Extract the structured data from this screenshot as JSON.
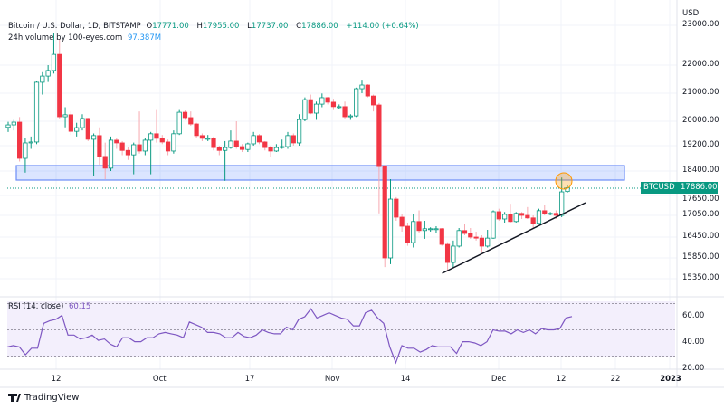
{
  "header": {
    "symbol_line": "Bitcoin / U.S. Dollar, 1D, BITSTAMP",
    "o_label": "O",
    "o_value": "17771.00",
    "h_label": "H",
    "h_value": "17955.00",
    "l_label": "L",
    "l_value": "17737.00",
    "c_label": "C",
    "c_value": "17886.00",
    "change": "+114.00 (+0.64%)",
    "volume_label": "24h volume by 100-eyes.com",
    "volume_value": "97.387M"
  },
  "price_scale": {
    "currency": "USD",
    "ticks": [
      "23000.00",
      "22000.00",
      "21000.00",
      "20000.00",
      "19200.00",
      "18400.00",
      "17650.00",
      "17050.00",
      "16450.00",
      "15850.00",
      "15350.00"
    ],
    "last_symbol": "BTCUSD",
    "last_price": "17886.00"
  },
  "rsi": {
    "label": "RSI (14, close)",
    "value": "60.15",
    "ticks": [
      "60.00",
      "40.00",
      "20.00"
    ],
    "bands": [
      70,
      50,
      30
    ],
    "values": [
      37,
      38,
      37,
      31,
      36,
      36,
      55,
      57,
      58,
      61,
      46,
      46,
      43,
      44,
      46,
      42,
      43,
      39,
      37,
      44,
      44,
      41,
      41,
      44,
      44,
      47,
      48,
      47,
      46,
      44,
      56,
      54,
      52,
      48,
      48,
      47,
      44,
      44,
      48,
      45,
      44,
      46,
      50,
      48,
      47,
      47,
      52,
      50,
      58,
      60,
      66,
      59,
      61,
      63,
      61,
      59,
      58,
      53,
      53,
      63,
      65,
      59,
      55,
      37,
      25,
      38,
      36,
      36,
      33,
      35,
      38,
      37,
      37,
      37,
      32,
      41,
      41,
      40,
      38,
      41,
      50,
      49,
      49,
      47,
      50,
      48,
      50,
      47,
      51,
      50,
      50,
      51,
      59,
      60.15
    ]
  },
  "time_axis": [
    "12",
    "Oct",
    "17",
    "Nov",
    "14",
    "Dec",
    "12",
    "22",
    "2023"
  ],
  "branding": "TradingView",
  "colors": {
    "up": "#089981",
    "up_fill": "#ffffff",
    "down": "#f23645",
    "zone": "#2962ff",
    "circle": "#ff9800",
    "rsi": "#7e57c2",
    "trendline": "#131722"
  },
  "chart_data": {
    "type": "candlestick",
    "title": "Bitcoin / U.S. Dollar, 1D, BITSTAMP",
    "ylabel": "USD",
    "ylim": [
      15200,
      23300
    ],
    "grid": true,
    "ohlc": [
      [
        19800,
        19980,
        19650,
        19880
      ],
      [
        19880,
        20050,
        19700,
        19970
      ],
      [
        19970,
        20150,
        18700,
        18800
      ],
      [
        18800,
        19450,
        18350,
        19290
      ],
      [
        19290,
        19500,
        19100,
        19320
      ],
      [
        19320,
        21450,
        19250,
        21390
      ],
      [
        21390,
        21750,
        20950,
        21610
      ],
      [
        21610,
        22000,
        21400,
        21810
      ],
      [
        21810,
        22800,
        21700,
        22270
      ],
      [
        22270,
        22650,
        20100,
        20160
      ],
      [
        20160,
        20500,
        19800,
        20230
      ],
      [
        20230,
        20350,
        19550,
        19670
      ],
      [
        19670,
        19950,
        19500,
        19790
      ],
      [
        19790,
        20250,
        19700,
        20100
      ],
      [
        20100,
        20120,
        19350,
        19410
      ],
      [
        19410,
        19600,
        18250,
        19530
      ],
      [
        19530,
        19800,
        18600,
        18860
      ],
      [
        18860,
        19300,
        18150,
        18490
      ],
      [
        18490,
        19500,
        18400,
        19380
      ],
      [
        19380,
        19450,
        19100,
        19290
      ],
      [
        19290,
        19350,
        18900,
        19050
      ],
      [
        19050,
        19150,
        18750,
        18910
      ],
      [
        18910,
        19300,
        18300,
        19230
      ],
      [
        19230,
        20350,
        18950,
        19030
      ],
      [
        19030,
        19450,
        18900,
        19380
      ],
      [
        19380,
        19650,
        18300,
        19590
      ],
      [
        19590,
        20400,
        19300,
        19440
      ],
      [
        19440,
        19550,
        19250,
        19320
      ],
      [
        19320,
        19400,
        18900,
        19030
      ],
      [
        19030,
        19700,
        18950,
        19590
      ],
      [
        19590,
        20400,
        19550,
        20320
      ],
      [
        20320,
        20380,
        20050,
        20130
      ],
      [
        20130,
        20350,
        19850,
        19910
      ],
      [
        19910,
        19950,
        19450,
        19530
      ],
      [
        19530,
        19600,
        19350,
        19440
      ],
      [
        19440,
        19550,
        19350,
        19440
      ],
      [
        19440,
        19500,
        19050,
        19140
      ],
      [
        19140,
        19200,
        18900,
        19050
      ],
      [
        19050,
        19350,
        18100,
        19140
      ],
      [
        19140,
        19700,
        19100,
        19350
      ],
      [
        19350,
        20000,
        19100,
        19170
      ],
      [
        19170,
        19250,
        19000,
        19080
      ],
      [
        19080,
        19300,
        19000,
        19260
      ],
      [
        19260,
        19650,
        19200,
        19530
      ],
      [
        19530,
        19580,
        19250,
        19320
      ],
      [
        19320,
        19350,
        19050,
        19140
      ],
      [
        19140,
        19200,
        18850,
        19030
      ],
      [
        19030,
        19250,
        19000,
        19140
      ],
      [
        19140,
        19400,
        19100,
        19170
      ],
      [
        19170,
        19650,
        19100,
        19530
      ],
      [
        19530,
        19600,
        19200,
        19290
      ],
      [
        19290,
        20250,
        19200,
        20060
      ],
      [
        20060,
        20850,
        20000,
        20770
      ],
      [
        20770,
        20950,
        20250,
        20290
      ],
      [
        20290,
        20700,
        20050,
        20610
      ],
      [
        20610,
        20990,
        20500,
        20840
      ],
      [
        20840,
        20870,
        20600,
        20680
      ],
      [
        20680,
        20800,
        20400,
        20520
      ],
      [
        20520,
        20600,
        20450,
        20520
      ],
      [
        20520,
        20700,
        20100,
        20160
      ],
      [
        20160,
        20250,
        20050,
        20190
      ],
      [
        20190,
        21200,
        20150,
        21160
      ],
      [
        21160,
        21480,
        21000,
        21290
      ],
      [
        21290,
        21320,
        20850,
        20900
      ],
      [
        20900,
        20950,
        20350,
        20580
      ],
      [
        20580,
        20650,
        17110,
        18540
      ],
      [
        18540,
        18600,
        15630,
        15850
      ],
      [
        15850,
        18150,
        15700,
        17540
      ],
      [
        17540,
        17600,
        16900,
        17000
      ],
      [
        17000,
        17100,
        16600,
        16750
      ],
      [
        16750,
        16850,
        16200,
        16290
      ],
      [
        16290,
        17100,
        16150,
        16880
      ],
      [
        16880,
        17200,
        16550,
        16630
      ],
      [
        16630,
        16900,
        16400,
        16680
      ],
      [
        16680,
        16720,
        16600,
        16680
      ],
      [
        16680,
        16750,
        16550,
        16680
      ],
      [
        16680,
        16700,
        16200,
        16240
      ],
      [
        16240,
        16300,
        15520,
        15740
      ],
      [
        15740,
        16350,
        15600,
        16190
      ],
      [
        16190,
        16700,
        16150,
        16630
      ],
      [
        16630,
        16800,
        16500,
        16550
      ],
      [
        16550,
        16700,
        16400,
        16450
      ],
      [
        16450,
        16600,
        16350,
        16420
      ],
      [
        16420,
        16500,
        16000,
        16190
      ],
      [
        16190,
        16650,
        16150,
        16420
      ],
      [
        16420,
        17200,
        16400,
        17160
      ],
      [
        17160,
        17250,
        16900,
        16950
      ],
      [
        16950,
        17150,
        16850,
        17080
      ],
      [
        17080,
        17400,
        16850,
        16880
      ],
      [
        16880,
        17150,
        16850,
        17110
      ],
      [
        17110,
        17150,
        16950,
        17050
      ],
      [
        17050,
        17300,
        16950,
        16980
      ],
      [
        16980,
        17050,
        16700,
        16830
      ],
      [
        16830,
        17250,
        16800,
        17190
      ],
      [
        17190,
        17350,
        17050,
        17110
      ],
      [
        17110,
        17150,
        17050,
        17110
      ],
      [
        17110,
        17200,
        16950,
        17050
      ],
      [
        17050,
        18200,
        17000,
        17760
      ],
      [
        17771,
        17955,
        17737,
        17886
      ]
    ],
    "annotations": {
      "resistance_zone": [
        18150,
        18650
      ],
      "trendline": [
        [
          77,
          15520
        ],
        [
          104,
          17350
        ]
      ]
    }
  }
}
